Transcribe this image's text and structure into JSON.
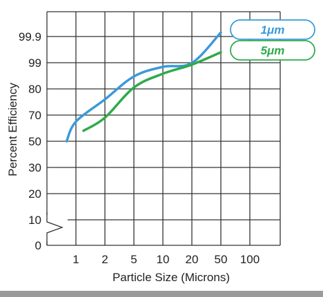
{
  "chart_data": {
    "type": "line",
    "xlabel": "Particle Size (Microns)",
    "ylabel": "Percent Efficiency",
    "x_ticks": [
      "1",
      "2",
      "5",
      "10",
      "20",
      "50",
      "100"
    ],
    "y_ticks": [
      "0",
      "10",
      "20",
      "30",
      "50",
      "70",
      "80",
      "99",
      "99.9"
    ],
    "grid": true,
    "legend_position": "top-right",
    "series": [
      {
        "name": "1μm",
        "color": "#3a9ad9",
        "points": [
          {
            "x": 0.8,
            "y": 50
          },
          {
            "x": 1,
            "y": 65
          },
          {
            "x": 2,
            "y": 76
          },
          {
            "x": 5,
            "y": 89
          },
          {
            "x": 10,
            "y": 96
          },
          {
            "x": 20,
            "y": 98.8
          },
          {
            "x": 50,
            "y": 99.93
          }
        ]
      },
      {
        "name": "5μm",
        "color": "#2eaa4a",
        "points": [
          {
            "x": 1.2,
            "y": 58
          },
          {
            "x": 2,
            "y": 68
          },
          {
            "x": 5,
            "y": 81
          },
          {
            "x": 10,
            "y": 91
          },
          {
            "x": 20,
            "y": 97.6
          },
          {
            "x": 50,
            "y": 99.6
          }
        ]
      }
    ]
  }
}
